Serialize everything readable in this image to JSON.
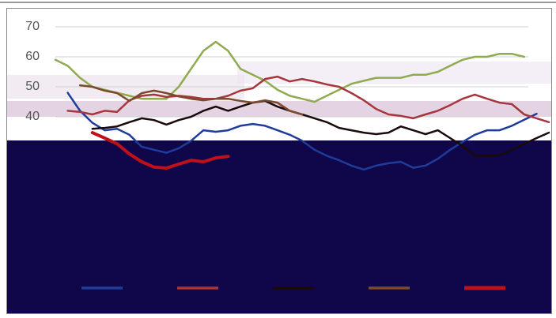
{
  "chart_data": {
    "type": "line",
    "categories": [
      null,
      null,
      null,
      null,
      null,
      null,
      null,
      null,
      null,
      null,
      null,
      null,
      null,
      null,
      null,
      null,
      null,
      null,
      null,
      null,
      null,
      null,
      null,
      null,
      null,
      null,
      null,
      null,
      null,
      null,
      null,
      null,
      null,
      null,
      null,
      null,
      null,
      null,
      null,
      null,
      null
    ],
    "ylim": [
      0,
      70
    ],
    "yticks": [
      40,
      50,
      60,
      70
    ],
    "grid": true,
    "series": [
      {
        "color": "#8faa4f",
        "linewidth": 2.5,
        "values": [
          59,
          57,
          53,
          50,
          49,
          48,
          47,
          46,
          46,
          46,
          50,
          56,
          62,
          65,
          62,
          56,
          54,
          52,
          49,
          47,
          46,
          45,
          47,
          49,
          51,
          52,
          53,
          53,
          53,
          54,
          54,
          55,
          57,
          59,
          60,
          60,
          61,
          61,
          60,
          null,
          null
        ]
      },
      {
        "color": "#1f3c9a",
        "linewidth": 2.5,
        "values": [
          null,
          48,
          42,
          38,
          35.5,
          36,
          34,
          30,
          29,
          28,
          29.5,
          32,
          35.5,
          35,
          35.5,
          37,
          37.6,
          37,
          35.5,
          34,
          32,
          29,
          27,
          25.5,
          23.7,
          22.4,
          23.7,
          24.5,
          25,
          23,
          23.7,
          26,
          29,
          31.6,
          34,
          35.5,
          35.5,
          37,
          39,
          41,
          null
        ]
      },
      {
        "color": "#a6363c",
        "linewidth": 2.5,
        "values": [
          null,
          42,
          41.6,
          40.8,
          42,
          41.6,
          45.5,
          47,
          47.4,
          46.6,
          47,
          46.6,
          46,
          46,
          47,
          48.7,
          49.5,
          52.6,
          53.4,
          51.8,
          52.6,
          51.8,
          50.8,
          50,
          47.9,
          45.5,
          42.6,
          40.8,
          40.3,
          39.5,
          40.8,
          42,
          43.9,
          46,
          47.4,
          46,
          44.7,
          44.2,
          40.8,
          39.5,
          38.2
        ]
      },
      {
        "color": "#1a0a0a",
        "linewidth": 2.5,
        "values": [
          null,
          null,
          null,
          36,
          36.3,
          36.8,
          38.2,
          39.5,
          38.9,
          37.4,
          38.9,
          40,
          42,
          43.4,
          42,
          43.4,
          44.7,
          45.3,
          43.4,
          42,
          40.8,
          39.5,
          38.2,
          36.3,
          35.5,
          34.7,
          34.2,
          34.7,
          36.8,
          35.5,
          34.2,
          35.5,
          32.9,
          30.3,
          27,
          27,
          27.1,
          28.9,
          31,
          32.9,
          34.7
        ]
      },
      {
        "color": "#7a4a2e",
        "linewidth": 2.5,
        "values": [
          null,
          null,
          50.5,
          50,
          48.7,
          47.9,
          45.3,
          47.9,
          48.7,
          47.9,
          46.8,
          46,
          45.5,
          46,
          46,
          45.3,
          44.7,
          45.5,
          44.7,
          42,
          40.8,
          null,
          null,
          null,
          null,
          null,
          null,
          null,
          null,
          null,
          null,
          null,
          null,
          null,
          null,
          null,
          null,
          null,
          null,
          null,
          null
        ]
      },
      {
        "color": "#c0101a",
        "linewidth": 4,
        "values": [
          null,
          null,
          null,
          34.7,
          32.9,
          31,
          27.6,
          25,
          23.2,
          22.9,
          24.2,
          25.5,
          25,
          26.3,
          26.8,
          null,
          null,
          null,
          null,
          null,
          null,
          null,
          null,
          null,
          null,
          null,
          null,
          null,
          null,
          null,
          null,
          null,
          null,
          null,
          null,
          null,
          null,
          null,
          null,
          null,
          null
        ]
      }
    ]
  }
}
